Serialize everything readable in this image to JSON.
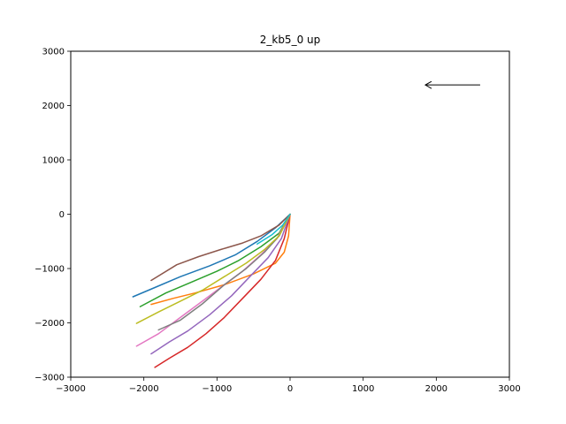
{
  "chart_data": {
    "type": "line",
    "title": "2_kb5_0 up",
    "xlabel": "",
    "ylabel": "",
    "xlim": [
      -3000,
      3000
    ],
    "ylim": [
      -3000,
      3000
    ],
    "xticks": [
      -3000,
      -2000,
      -1000,
      0,
      1000,
      2000,
      3000
    ],
    "yticks": [
      -3000,
      -2000,
      -1000,
      0,
      1000,
      2000,
      3000
    ],
    "xtick_labels": [
      "−3000",
      "−2000",
      "−1000",
      "0",
      "1000",
      "2000",
      "3000"
    ],
    "ytick_labels": [
      "−3000",
      "−2000",
      "−1000",
      "0",
      "1000",
      "2000",
      "3000"
    ],
    "grid": false,
    "annotation_arrow": {
      "from": [
        2600,
        2380
      ],
      "to": [
        1850,
        2380
      ]
    },
    "series": [
      {
        "color": "#1f77b4",
        "x": [
          0,
          -200,
          -450,
          -750,
          -1100,
          -1500,
          -1850,
          -2150
        ],
        "y": [
          0,
          -250,
          -500,
          -750,
          -950,
          -1150,
          -1350,
          -1520
        ]
      },
      {
        "color": "#ff7f0e",
        "x": [
          0,
          -20,
          -80,
          -200,
          -500,
          -900,
          -1300,
          -1600,
          -1900
        ],
        "y": [
          0,
          -400,
          -700,
          -900,
          -1100,
          -1300,
          -1450,
          -1550,
          -1660
        ]
      },
      {
        "color": "#2ca02c",
        "x": [
          0,
          -150,
          -400,
          -700,
          -1000,
          -1350,
          -1700,
          -2050
        ],
        "y": [
          0,
          -350,
          -600,
          -850,
          -1050,
          -1250,
          -1450,
          -1700
        ]
      },
      {
        "color": "#d62728",
        "x": [
          0,
          -80,
          -200,
          -400,
          -650,
          -900,
          -1150,
          -1400,
          -1650,
          -1850
        ],
        "y": [
          0,
          -450,
          -850,
          -1200,
          -1550,
          -1900,
          -2200,
          -2450,
          -2650,
          -2820
        ]
      },
      {
        "color": "#9467bd",
        "x": [
          0,
          -120,
          -300,
          -550,
          -800,
          -1100,
          -1400,
          -1650,
          -1900
        ],
        "y": [
          0,
          -450,
          -800,
          -1150,
          -1500,
          -1850,
          -2150,
          -2350,
          -2570
        ]
      },
      {
        "color": "#8c564b",
        "x": [
          0,
          -150,
          -400,
          -650,
          -950,
          -1250,
          -1550,
          -1900
        ],
        "y": [
          0,
          -200,
          -400,
          -530,
          -650,
          -780,
          -930,
          -1220
        ]
      },
      {
        "color": "#e377c2",
        "x": [
          0,
          -180,
          -400,
          -650,
          -950,
          -1250,
          -1550,
          -1800,
          -2100
        ],
        "y": [
          0,
          -450,
          -750,
          -1050,
          -1350,
          -1650,
          -1950,
          -2200,
          -2430
        ]
      },
      {
        "color": "#7f7f7f",
        "x": [
          0,
          -150,
          -350,
          -600,
          -900,
          -1200,
          -1500,
          -1800
        ],
        "y": [
          0,
          -400,
          -700,
          -1000,
          -1300,
          -1650,
          -1950,
          -2130
        ]
      },
      {
        "color": "#bcbd22",
        "x": [
          0,
          -150,
          -350,
          -600,
          -900,
          -1200,
          -1500,
          -1800,
          -2100
        ],
        "y": [
          0,
          -400,
          -650,
          -900,
          -1150,
          -1400,
          -1600,
          -1800,
          -2010
        ]
      },
      {
        "color": "#17becf",
        "x": [
          0,
          -100,
          -250,
          -450
        ],
        "y": [
          0,
          -200,
          -380,
          -550
        ]
      }
    ]
  }
}
